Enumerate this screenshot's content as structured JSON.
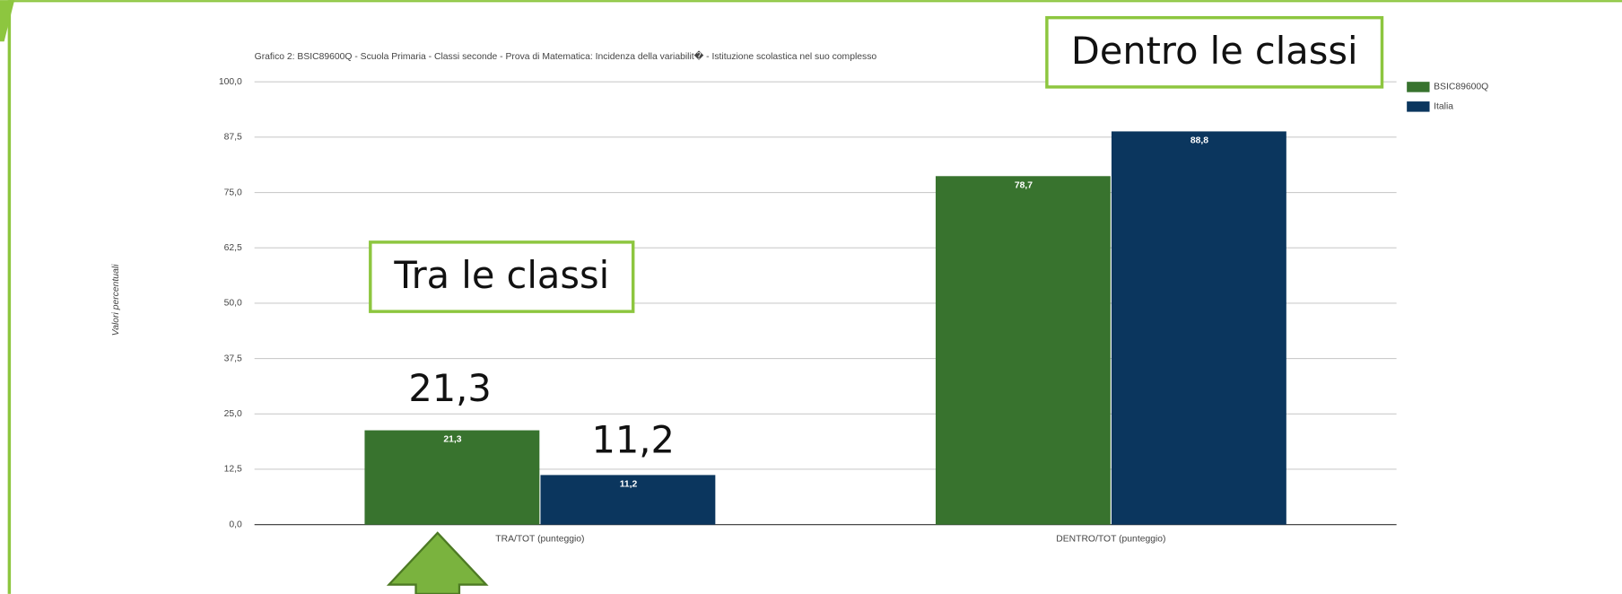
{
  "chart_data": {
    "type": "bar",
    "title": "Grafico 2: BSIC89600Q - Scuola Primaria - Classi seconde - Prova di Matematica: Incidenza della variabilit� - Istituzione scolastica nel suo complesso",
    "y_label": "Valori percentuali",
    "categories": [
      "TRA/TOT (punteggio)",
      "DENTRO/TOT (punteggio)"
    ],
    "series": [
      {
        "name": "BSIC89600Q",
        "color": "#38732e",
        "values": [
          21.3,
          78.7
        ],
        "value_labels": [
          "21,3",
          "78,7"
        ]
      },
      {
        "name": "Italia",
        "color": "#0b365e",
        "values": [
          11.2,
          88.8
        ],
        "value_labels": [
          "11,2",
          "88,8"
        ]
      }
    ],
    "ylim": [
      0,
      100
    ],
    "yticks": [
      {
        "value": 0,
        "label": "0,0"
      },
      {
        "value": 12.5,
        "label": "12,5"
      },
      {
        "value": 25,
        "label": "25,0"
      },
      {
        "value": 37.5,
        "label": "37,5"
      },
      {
        "value": 50,
        "label": "50,0"
      },
      {
        "value": 62.5,
        "label": "62,5"
      },
      {
        "value": 75,
        "label": "75,0"
      },
      {
        "value": 87.5,
        "label": "87,5"
      },
      {
        "value": 100,
        "label": "100,0"
      }
    ],
    "grid": true,
    "legend": "right",
    "annotations": [
      "Tra le classi",
      "Dentro le classi",
      "21,3",
      "11,2"
    ]
  }
}
